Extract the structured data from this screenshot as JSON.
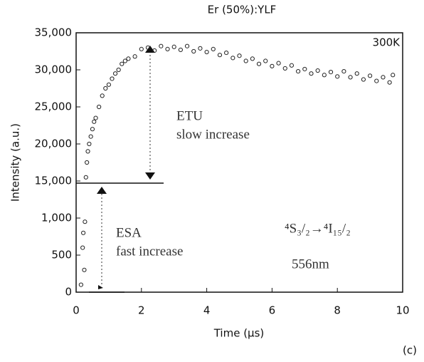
{
  "chart_data": {
    "type": "scatter",
    "title": "Er (50%):YLF",
    "x_label": "Time (μs)",
    "y_label": "Intensity (a.u.)",
    "annotations": [
      "300K",
      "ETU",
      "slow increase",
      "ESA",
      "fast increase",
      "⁴S₃/₂→⁴I₁₅/₂",
      "556nm",
      "(c)"
    ],
    "x": [
      0.15,
      0.2,
      0.22,
      0.25,
      0.27,
      0.3,
      0.33,
      0.36,
      0.4,
      0.45,
      0.5,
      0.55,
      0.6,
      0.7,
      0.8,
      0.9,
      1.0,
      1.1,
      1.2,
      1.3,
      1.4,
      1.5,
      1.6,
      1.8,
      2.0,
      2.2,
      2.4,
      2.6,
      2.8,
      3.0,
      3.2,
      3.4,
      3.6,
      3.8,
      4.0,
      4.2,
      4.4,
      4.6,
      4.8,
      5.0,
      5.2,
      5.4,
      5.6,
      5.8,
      6.0,
      6.2,
      6.4,
      6.6,
      6.8,
      7.0,
      7.2,
      7.4,
      7.6,
      7.8,
      8.0,
      8.2,
      8.4,
      8.6,
      8.8,
      9.0,
      9.2,
      9.4,
      9.6,
      9.7
    ],
    "values": [
      100,
      600,
      800,
      300,
      950,
      15500,
      17500,
      19000,
      20000,
      21000,
      22000,
      23000,
      23500,
      25000,
      26500,
      27500,
      28000,
      28800,
      29500,
      30000,
      30800,
      31200,
      31500,
      31800,
      32800,
      33000,
      32600,
      33200,
      32800,
      33100,
      32700,
      33200,
      32500,
      32900,
      32400,
      32800,
      32000,
      32300,
      31600,
      31900,
      31200,
      31500,
      30800,
      31200,
      30500,
      30900,
      30200,
      30600,
      29800,
      30100,
      29500,
      29900,
      29300,
      29700,
      29100,
      29800,
      29000,
      29500,
      28700,
      29200,
      28500,
      29000,
      28300,
      29300
    ],
    "color": "#222222",
    "xlim": [
      0,
      10
    ],
    "xticks": [
      0,
      2,
      4,
      6,
      8,
      10
    ],
    "ylim": [
      0,
      35000
    ],
    "yticks": [
      0,
      500,
      {
        "value": 1000,
        "label": "1,000"
      },
      {
        "value": 15000,
        "label": "15,000"
      },
      {
        "value": 20000,
        "label": "20,000"
      },
      {
        "value": 25000,
        "label": "25,000"
      },
      {
        "value": 30000,
        "label": "30,000"
      },
      {
        "value": 35000,
        "label": "35,000"
      }
    ]
  }
}
